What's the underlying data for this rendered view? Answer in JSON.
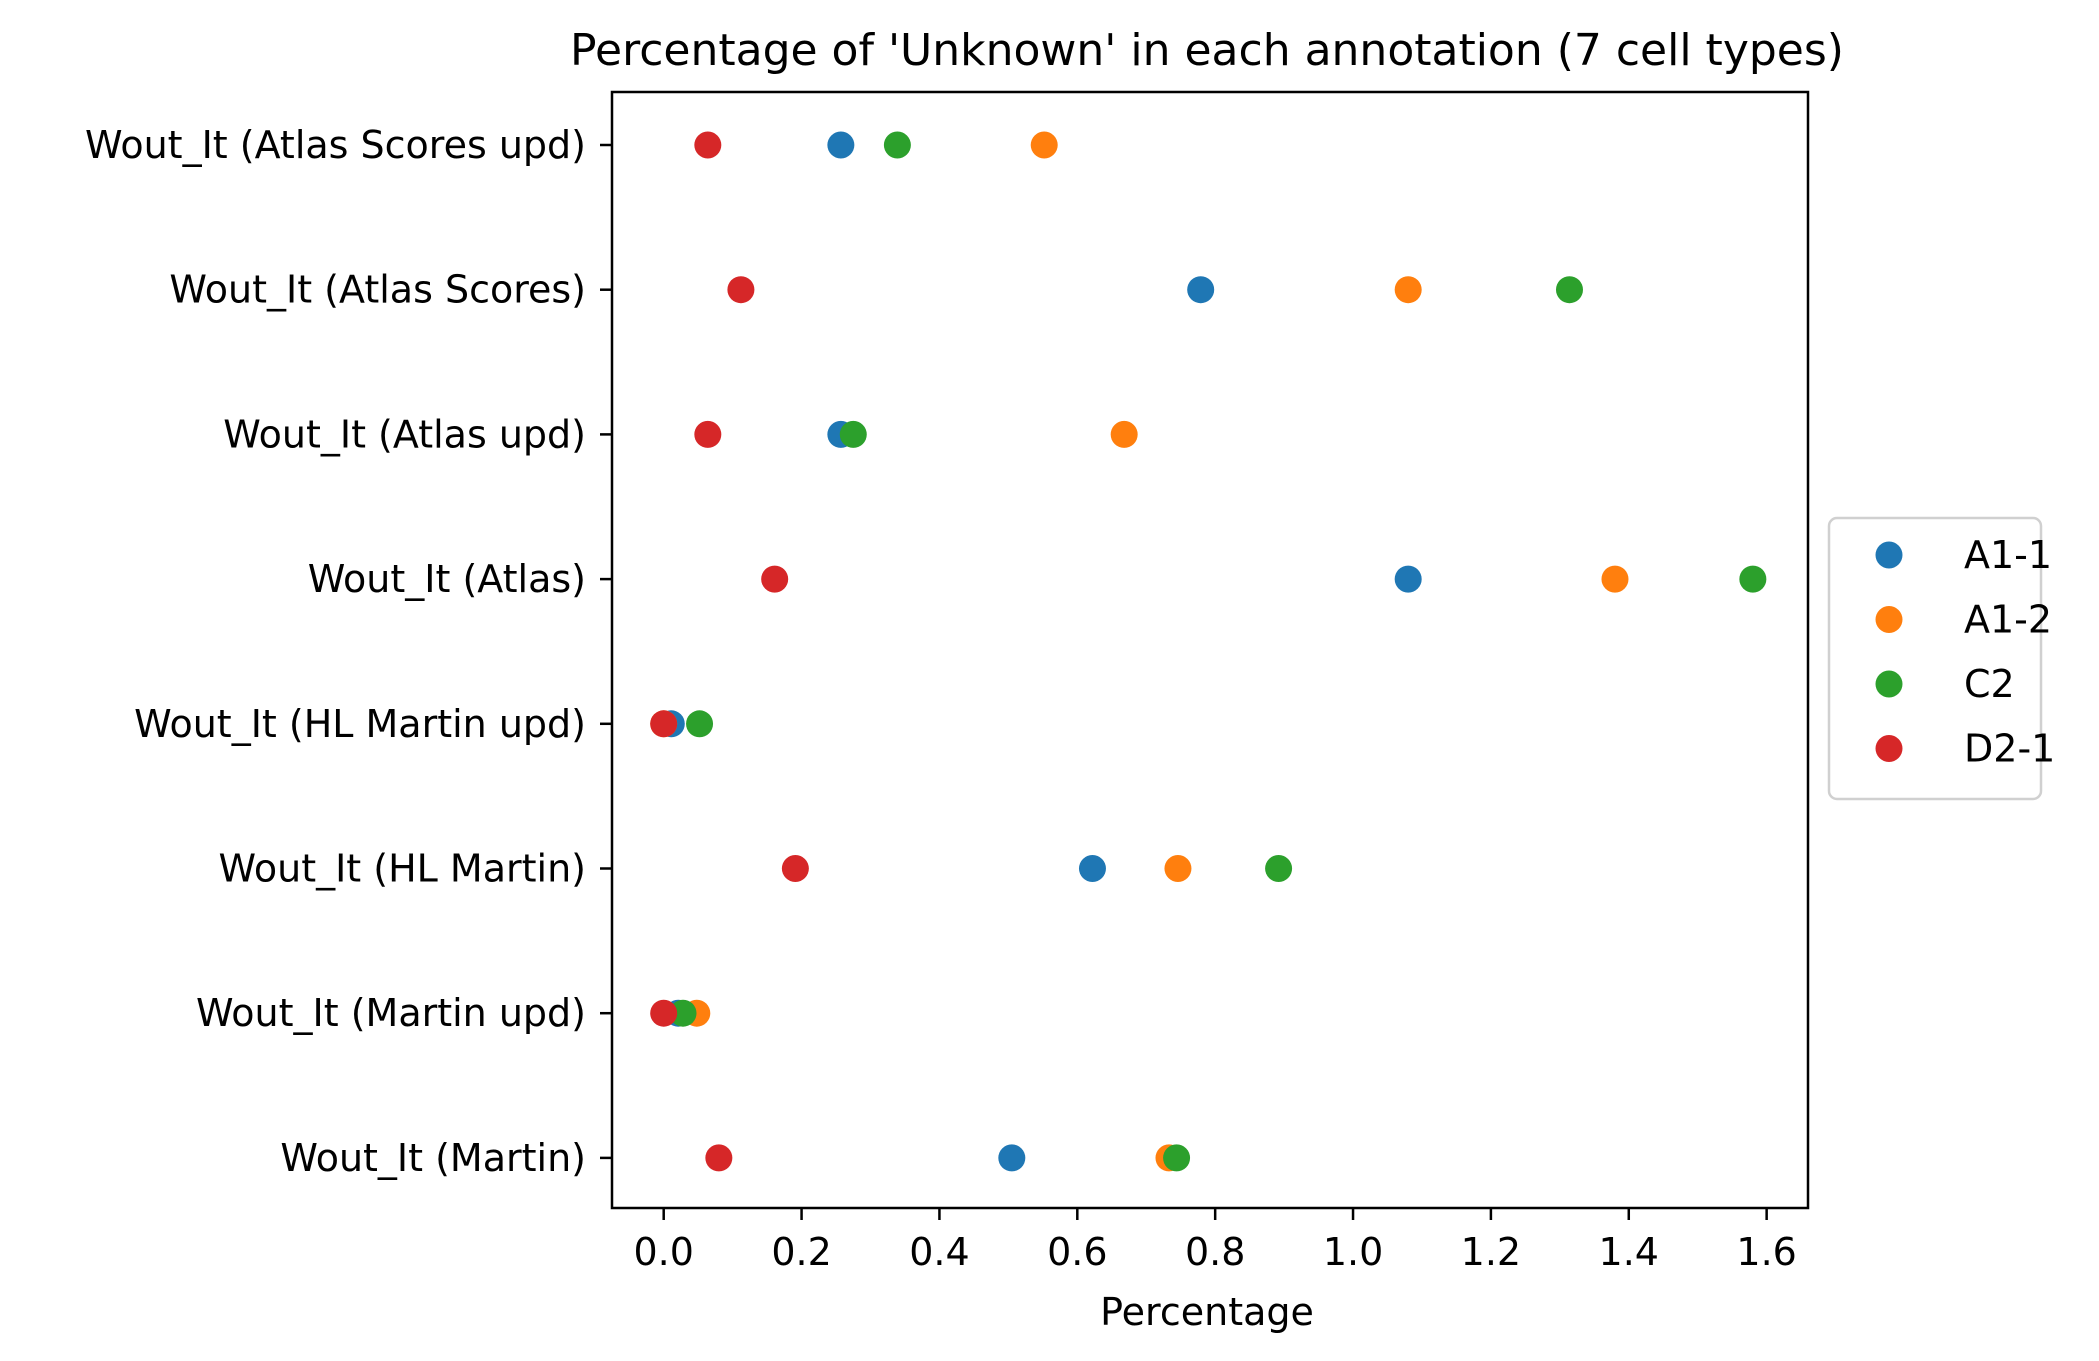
{
  "chart_data": {
    "type": "scatter",
    "title": "Percentage of 'Unknown' in each annotation (7 cell types)",
    "xlabel": "Percentage",
    "ylabel": "",
    "xlim": [
      -0.075,
      1.66
    ],
    "xticks": [
      0.0,
      0.2,
      0.4,
      0.6,
      0.8,
      1.0,
      1.2,
      1.4,
      1.6
    ],
    "xtick_labels": [
      "0.0",
      "0.2",
      "0.4",
      "0.6",
      "0.8",
      "1.0",
      "1.2",
      "1.4",
      "1.6"
    ],
    "categories": [
      "Wout_It (Atlas Scores upd)",
      "Wout_It (Atlas Scores)",
      "Wout_It (Atlas upd)",
      "Wout_It (Atlas)",
      "Wout_It (HL Martin upd)",
      "Wout_It (HL Martin)",
      "Wout_It (Martin upd)",
      "Wout_It (Martin)"
    ],
    "series": [
      {
        "name": "A1-1",
        "color": "#1f77b4",
        "values": [
          0.257,
          0.779,
          0.257,
          1.08,
          0.011,
          0.622,
          0.021,
          0.505
        ]
      },
      {
        "name": "A1-2",
        "color": "#ff7f0e",
        "values": [
          0.552,
          1.08,
          0.668,
          1.38,
          0.0,
          0.746,
          0.048,
          0.733
        ]
      },
      {
        "name": "C2",
        "color": "#2ca02c",
        "values": [
          0.339,
          1.314,
          0.275,
          1.58,
          0.052,
          0.892,
          0.028,
          0.744
        ]
      },
      {
        "name": "D2-1",
        "color": "#d62728",
        "values": [
          0.064,
          0.112,
          0.064,
          0.161,
          0.0,
          0.191,
          0.0,
          0.08
        ]
      }
    ],
    "grid": false,
    "legend_position": "center-right, outside plot"
  }
}
